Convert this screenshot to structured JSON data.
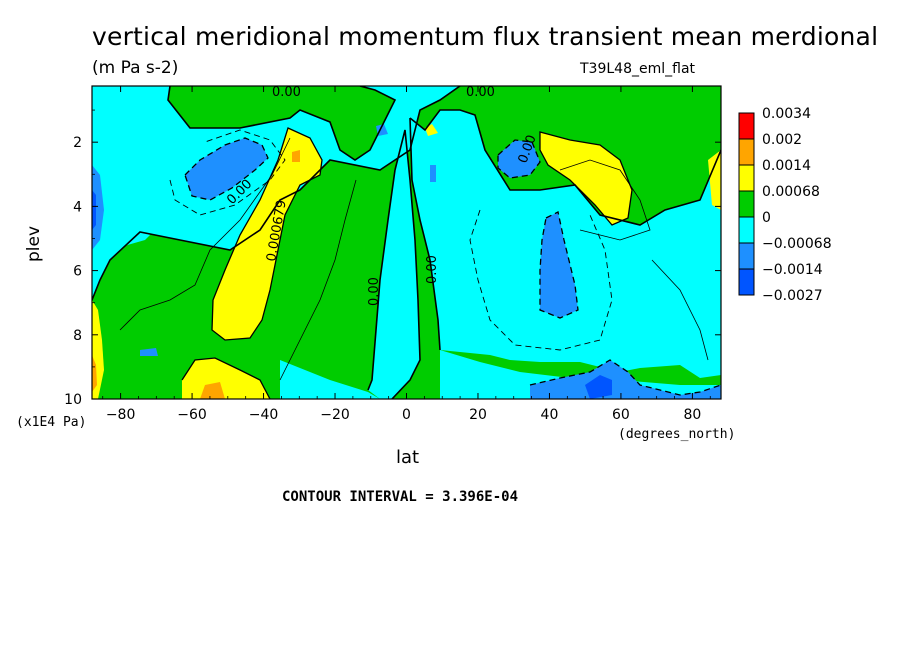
{
  "chart_data": {
    "type": "heatmap",
    "title": "vertical meridional momentum flux transient mean merdional",
    "units": "(m Pa s-2)",
    "run_name": "T39L48_eml_flat",
    "xlabel": "lat",
    "x_units": "(degrees_north)",
    "ylabel": "plev",
    "y_units": "(x1E4 Pa)",
    "contour_interval_text": "CONTOUR INTERVAL = 3.396E-04",
    "xlim": [
      -88,
      88
    ],
    "ylim": [
      10,
      0.25
    ],
    "x_ticks": [
      -80,
      -60,
      -40,
      -20,
      0,
      20,
      40,
      60,
      80
    ],
    "y_ticks": [
      2,
      4,
      6,
      8,
      10
    ],
    "colorbar": {
      "labels": [
        "0.0034",
        "0.002",
        "0.0014",
        "0.00068",
        "0",
        "-0.00068",
        "-0.0014",
        "-0.0027"
      ],
      "colors": [
        "#ff0000",
        "#ffa500",
        "#ffff00",
        "#00cc00",
        "#00ffff",
        "#1e90ff",
        "#0055ff"
      ]
    },
    "contour_labels": [
      "0.00",
      "0.00",
      "0.00",
      "0.000679",
      "0.00",
      "0.00",
      "0.00"
    ],
    "regions": [
      {
        "level": "0 to 0.00068",
        "x": [
          -88,
          88
        ],
        "y": [
          0.25,
          10
        ],
        "note": "background"
      },
      {
        "level": "-0.00068 to 0",
        "x": [
          8,
          88
        ],
        "y": [
          1.5,
          9
        ],
        "note": "NH tropics/midlatitudes"
      },
      {
        "level": "-0.00068 to 0",
        "x": [
          -88,
          -20
        ],
        "y": [
          0.5,
          4
        ],
        "note": "SH upper"
      },
      {
        "level": "0.00068 to 0.0014",
        "x": [
          -58,
          -28
        ],
        "y": [
          1.5,
          8
        ],
        "note": "SH jet"
      },
      {
        "level": "0.00068 to 0.0014",
        "x": [
          40,
          65
        ],
        "y": [
          1.5,
          4.5
        ],
        "note": "NH jet"
      },
      {
        "level": "-0.0014 to -0.00068",
        "x": [
          -70,
          -52
        ],
        "y": [
          1.5,
          3.5
        ]
      },
      {
        "level": "-0.0014 to -0.00068",
        "x": [
          38,
          48
        ],
        "y": [
          3.5,
          7.5
        ]
      },
      {
        "level": "-0.0014 to -0.00068",
        "x": [
          24,
          36
        ],
        "y": [
          1.8,
          3
        ]
      },
      {
        "level": "-0.0014 to -0.00068",
        "x": [
          34,
          78
        ],
        "y": [
          9,
          10
        ]
      }
    ]
  }
}
